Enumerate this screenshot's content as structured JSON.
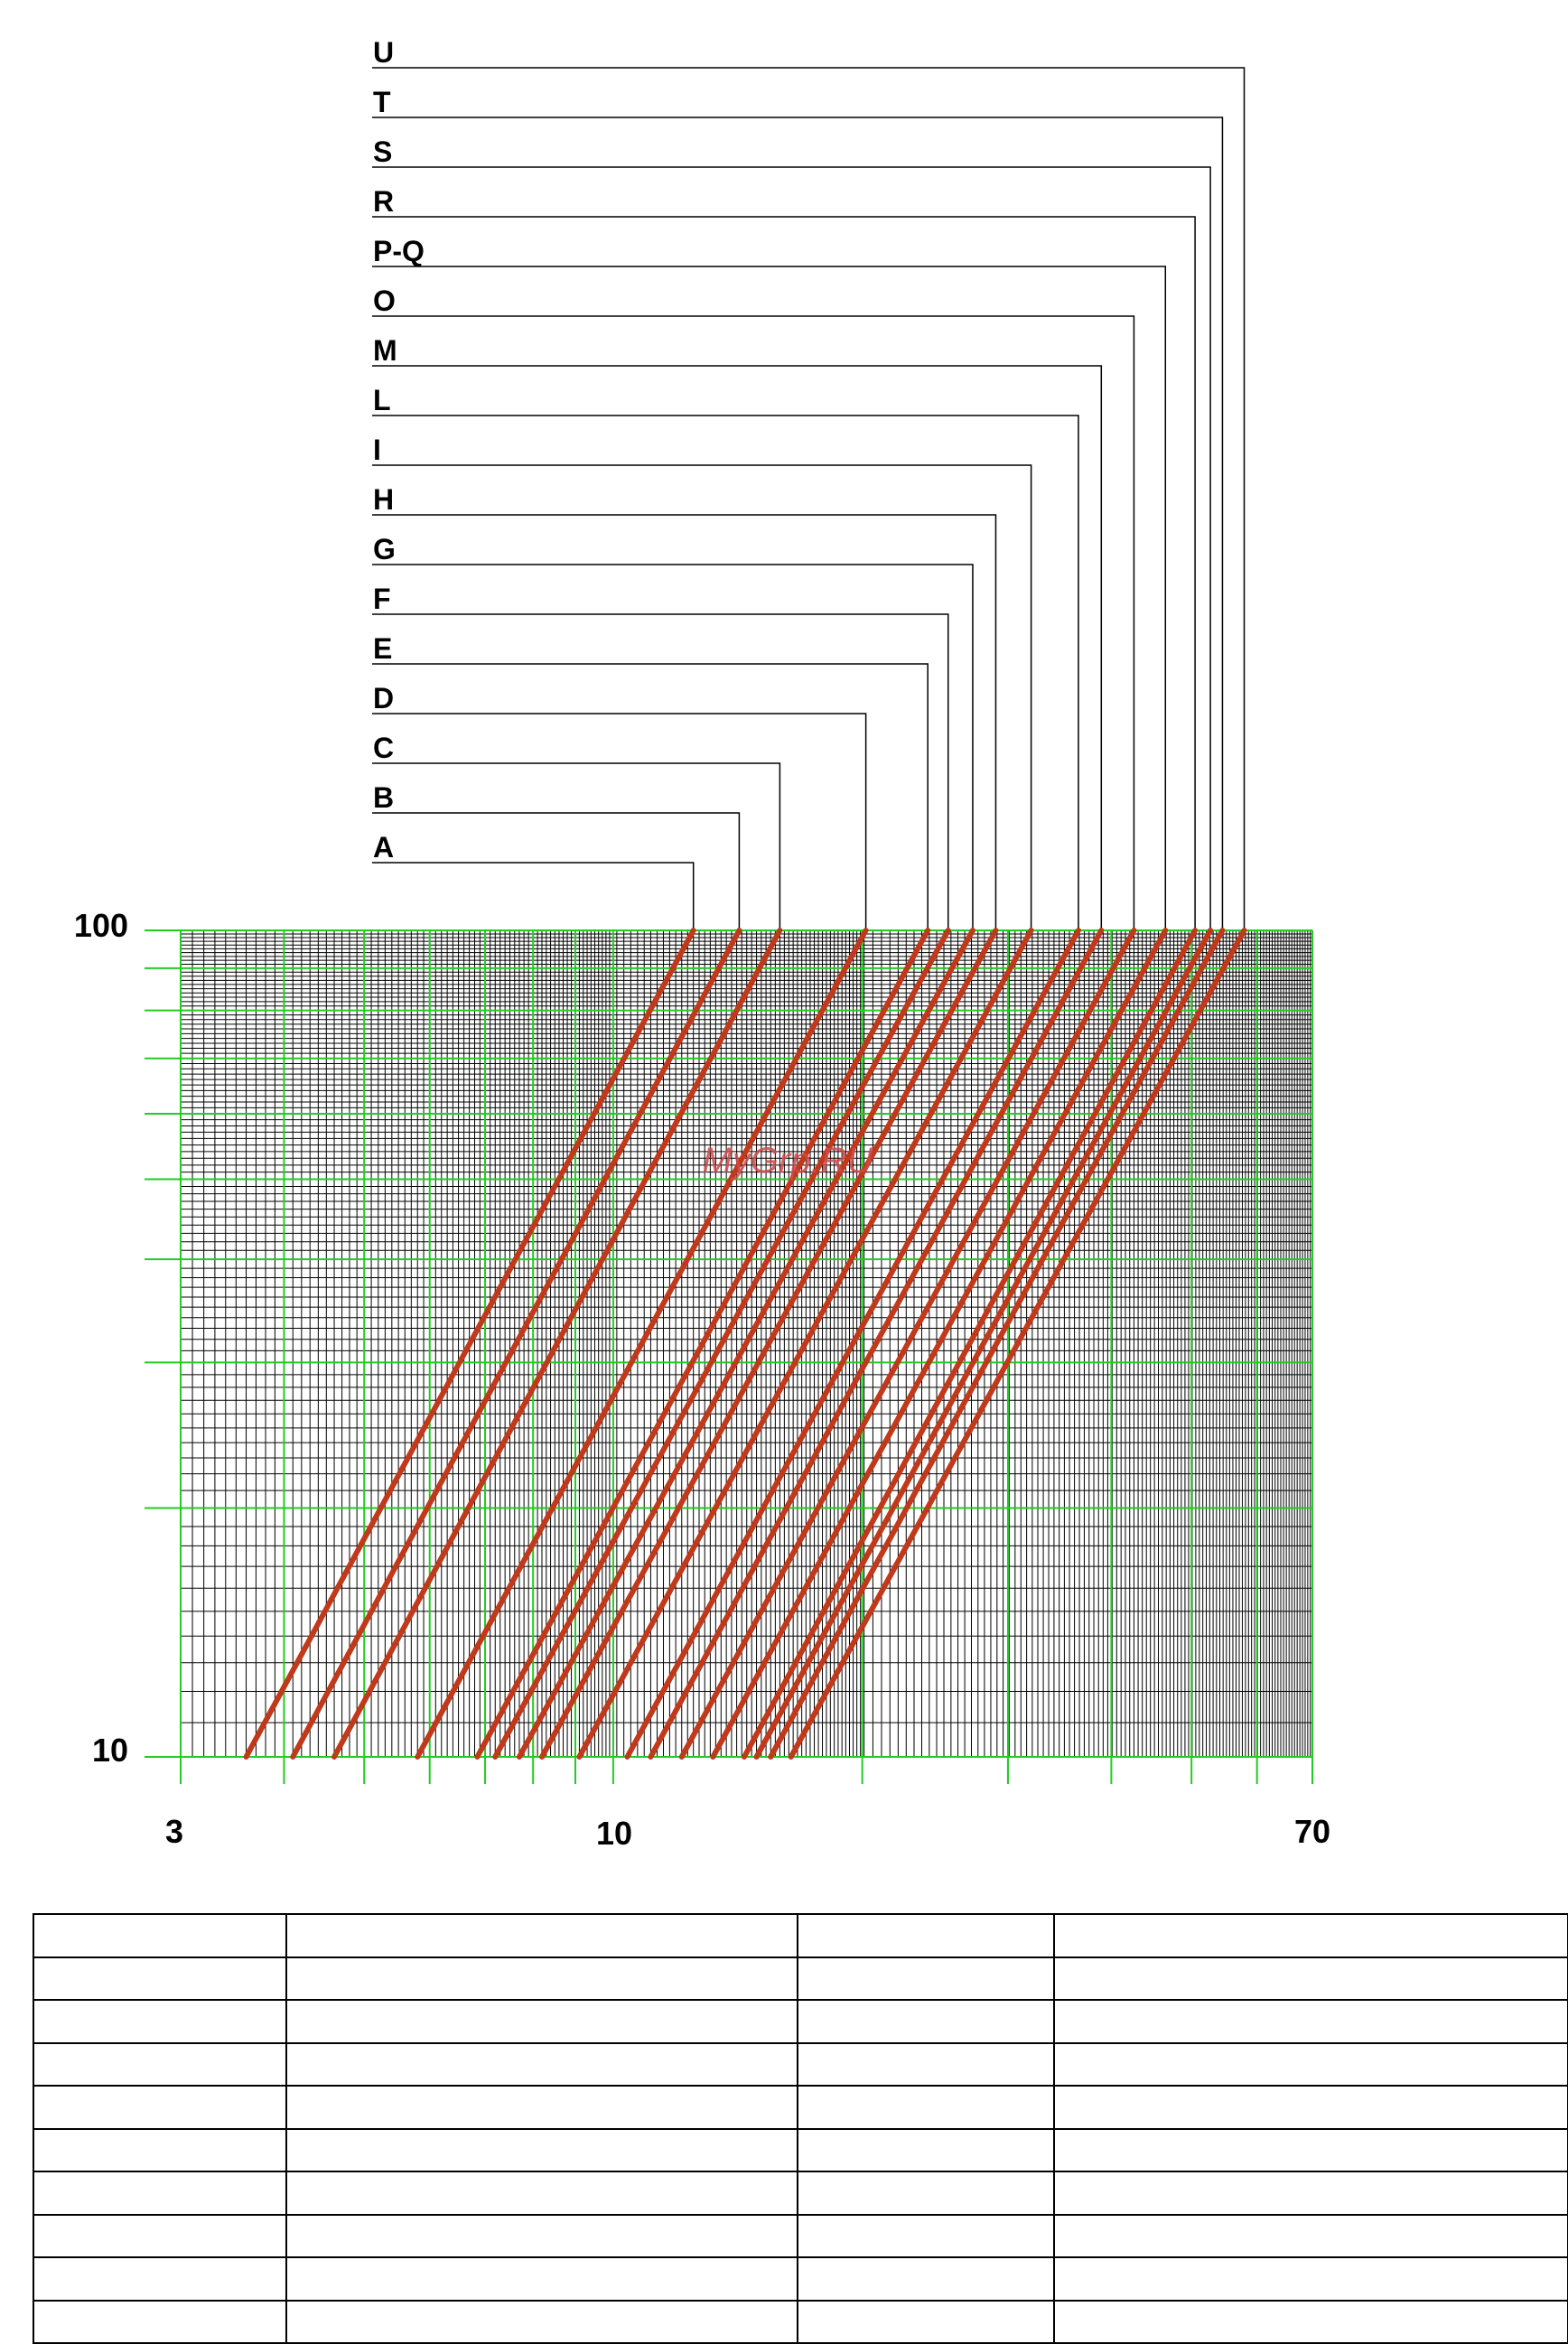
{
  "chart_data": {
    "type": "line",
    "title": "",
    "xlabel": "",
    "ylabel": "",
    "x_scale": "log",
    "y_scale": "log",
    "xlim": [
      3,
      70
    ],
    "ylim": [
      10,
      100
    ],
    "x_tick_labels": [
      "3",
      "10",
      "70"
    ],
    "y_tick_labels": [
      "10",
      "100"
    ],
    "grid": true,
    "grid_color_major": "#22cc22",
    "grid_color_minor": "#000000",
    "line_color": "#c0391b",
    "watermark": "MyGrp.RU",
    "legend": "top, stacked labels with leader lines to the top end of each line",
    "series": [
      {
        "name": "A",
        "x": [
          3.6,
          12.5
        ],
        "y": [
          10,
          100
        ]
      },
      {
        "name": "B",
        "x": [
          4.1,
          14.2
        ],
        "y": [
          10,
          100
        ]
      },
      {
        "name": "C",
        "x": [
          4.6,
          15.9
        ],
        "y": [
          10,
          100
        ]
      },
      {
        "name": "D",
        "x": [
          5.8,
          20.2
        ],
        "y": [
          10,
          100
        ]
      },
      {
        "name": "E",
        "x": [
          6.85,
          24.0
        ],
        "y": [
          10,
          100
        ]
      },
      {
        "name": "F",
        "x": [
          7.2,
          25.4
        ],
        "y": [
          10,
          100
        ]
      },
      {
        "name": "G",
        "x": [
          7.7,
          27.2
        ],
        "y": [
          10,
          100
        ]
      },
      {
        "name": "H",
        "x": [
          8.2,
          29.0
        ],
        "y": [
          10,
          100
        ]
      },
      {
        "name": "I",
        "x": [
          9.1,
          32.0
        ],
        "y": [
          10,
          100
        ]
      },
      {
        "name": "L",
        "x": [
          10.4,
          36.5
        ],
        "y": [
          10,
          100
        ]
      },
      {
        "name": "M",
        "x": [
          11.1,
          38.9
        ],
        "y": [
          10,
          100
        ]
      },
      {
        "name": "O",
        "x": [
          12.1,
          42.6
        ],
        "y": [
          10,
          100
        ]
      },
      {
        "name": "P-Q",
        "x": [
          13.2,
          46.5
        ],
        "y": [
          10,
          100
        ]
      },
      {
        "name": "R",
        "x": [
          14.4,
          50.5
        ],
        "y": [
          10,
          100
        ]
      },
      {
        "name": "S",
        "x": [
          14.9,
          52.7
        ],
        "y": [
          10,
          100
        ]
      },
      {
        "name": "T",
        "x": [
          15.5,
          54.5
        ],
        "y": [
          10,
          100
        ]
      },
      {
        "name": "U",
        "x": [
          16.4,
          57.9
        ],
        "y": [
          10,
          100
        ]
      }
    ]
  }
}
